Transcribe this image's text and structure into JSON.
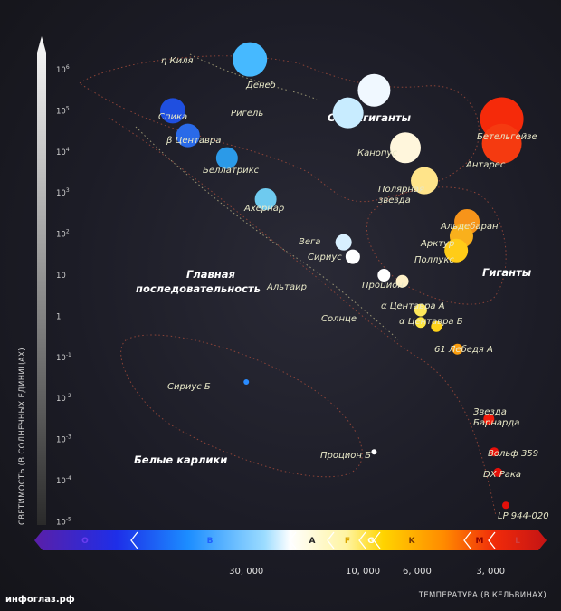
{
  "y_axis": {
    "title": "СВЕТИМОСТЬ (В СОЛНЕЧНЫХ ЕДИНИЦАХ)",
    "ticks": [
      {
        "exp": 6,
        "label": "10",
        "sup": "6"
      },
      {
        "exp": 5,
        "label": "10",
        "sup": "5"
      },
      {
        "exp": 4,
        "label": "10",
        "sup": "4"
      },
      {
        "exp": 3,
        "label": "10",
        "sup": "3"
      },
      {
        "exp": 2,
        "label": "10",
        "sup": "2"
      },
      {
        "exp": 1,
        "label": "10",
        "sup": ""
      },
      {
        "exp": 0,
        "label": "1",
        "sup": ""
      },
      {
        "exp": -1,
        "label": "10",
        "sup": "-1"
      },
      {
        "exp": -2,
        "label": "10",
        "sup": "-2"
      },
      {
        "exp": -3,
        "label": "10",
        "sup": "-3"
      },
      {
        "exp": -4,
        "label": "10",
        "sup": "-4"
      },
      {
        "exp": -5,
        "label": "10",
        "sup": "-5"
      }
    ]
  },
  "x_axis": {
    "title": "ТЕМПЕРАТУРА (В КЕЛЬВИНАХ)",
    "ticks": [
      {
        "temp": 30000,
        "label": "30, 000"
      },
      {
        "temp": 10000,
        "label": "10, 000"
      },
      {
        "temp": 6000,
        "label": "6, 000"
      },
      {
        "temp": 3000,
        "label": "3, 000"
      }
    ]
  },
  "spectral_classes": [
    {
      "label": "O",
      "color": "#6a3df0"
    },
    {
      "label": "B",
      "color": "#1f5fff"
    },
    {
      "label": "A",
      "color": "#222222"
    },
    {
      "label": "F",
      "color": "#d9a400"
    },
    {
      "label": "G",
      "color": "#ffffff"
    },
    {
      "label": "K",
      "color": "#7a3a00"
    },
    {
      "label": "M",
      "color": "#8a0000"
    },
    {
      "label": "L",
      "color": "#d04040"
    }
  ],
  "regions": {
    "supergiants": "Сверхгиганты",
    "giants": "Гиганты",
    "main_sequence_line1": "Главная",
    "main_sequence_line2": "последовательность",
    "white_dwarfs": "Белые карлики"
  },
  "stars": [
    {
      "name": "η Киля",
      "temp": 29000,
      "lum_exp": 6.25,
      "color": "#46b9ff"
    },
    {
      "name": "Денеб",
      "temp": 9000,
      "lum_exp": 5.5,
      "color": "#f0f8ff"
    },
    {
      "name": "Ригель",
      "temp": 11500,
      "lum_exp": 4.95,
      "color": "#c8ecff"
    },
    {
      "name": "Спика",
      "temp": 60000,
      "lum_exp": 5.0,
      "color": "#1f4fe0"
    },
    {
      "name": "β Центавра",
      "temp": 52000,
      "lum_exp": 4.4,
      "color": "#2a6ae8"
    },
    {
      "name": "Беллатрикс",
      "temp": 36000,
      "lum_exp": 3.85,
      "color": "#2b9ae8"
    },
    {
      "name": "Ахернар",
      "temp": 25000,
      "lum_exp": 2.85,
      "color": "#6ecaef"
    },
    {
      "name": "Канопус",
      "temp": 6700,
      "lum_exp": 4.1,
      "color": "#fff6dc"
    },
    {
      "name": "Полярная звезда",
      "temp": 5600,
      "lum_exp": 3.3,
      "color": "#ffe48a"
    },
    {
      "name": "Бетельгейзе",
      "temp": 2700,
      "lum_exp": 4.8,
      "color": "#f52a0a"
    },
    {
      "name": "Антарес",
      "temp": 2700,
      "lum_exp": 4.2,
      "color": "#f53a10"
    },
    {
      "name": "Альдебаран",
      "temp": 3750,
      "lum_exp": 2.3,
      "color": "#f7941a"
    },
    {
      "name": "Арктур",
      "temp": 3950,
      "lum_exp": 1.95,
      "color": "#f9b01c"
    },
    {
      "name": "Поллукс",
      "temp": 4150,
      "lum_exp": 1.6,
      "color": "#ffcc18"
    },
    {
      "name": "Вега",
      "temp": 12000,
      "lum_exp": 1.8,
      "color": "#d8f0ff"
    },
    {
      "name": "Сириус",
      "temp": 11000,
      "lum_exp": 1.45,
      "color": "#ffffff"
    },
    {
      "name": "Альтаир",
      "temp": 8200,
      "lum_exp": 1.0,
      "color": "#ffffff"
    },
    {
      "name": "Процион",
      "temp": 6900,
      "lum_exp": 0.85,
      "color": "#fff1c8"
    },
    {
      "name": "α Центавра А",
      "temp": 5800,
      "lum_exp": 0.15,
      "color": "#ffe85a"
    },
    {
      "name": "Солнце",
      "temp": 5800,
      "lum_exp": -0.15,
      "color": "#ffe640"
    },
    {
      "name": "α Центавра Б",
      "temp": 5000,
      "lum_exp": -0.25,
      "color": "#ffd21a"
    },
    {
      "name": "61 Лебедя А",
      "temp": 4100,
      "lum_exp": -0.8,
      "color": "#f99c0e"
    },
    {
      "name": "Звезда Барнарда",
      "temp": 3050,
      "lum_exp": -2.5,
      "color": "#f01a0a"
    },
    {
      "name": "Вольф 359",
      "temp": 2900,
      "lum_exp": -3.3,
      "color": "#e8100a"
    },
    {
      "name": "DX Рака",
      "temp": 2800,
      "lum_exp": -3.8,
      "color": "#e4100a"
    },
    {
      "name": "LP 944-020",
      "temp": 2600,
      "lum_exp": -4.6,
      "color": "#e2100a"
    },
    {
      "name": "Сириус Б",
      "temp": 30000,
      "lum_exp": -1.6,
      "color": "#2a8cff"
    },
    {
      "name": "Процион Б",
      "temp": 9000,
      "lum_exp": -3.3,
      "color": "#ffffff"
    }
  ],
  "source": "инфоглаз.рф"
}
